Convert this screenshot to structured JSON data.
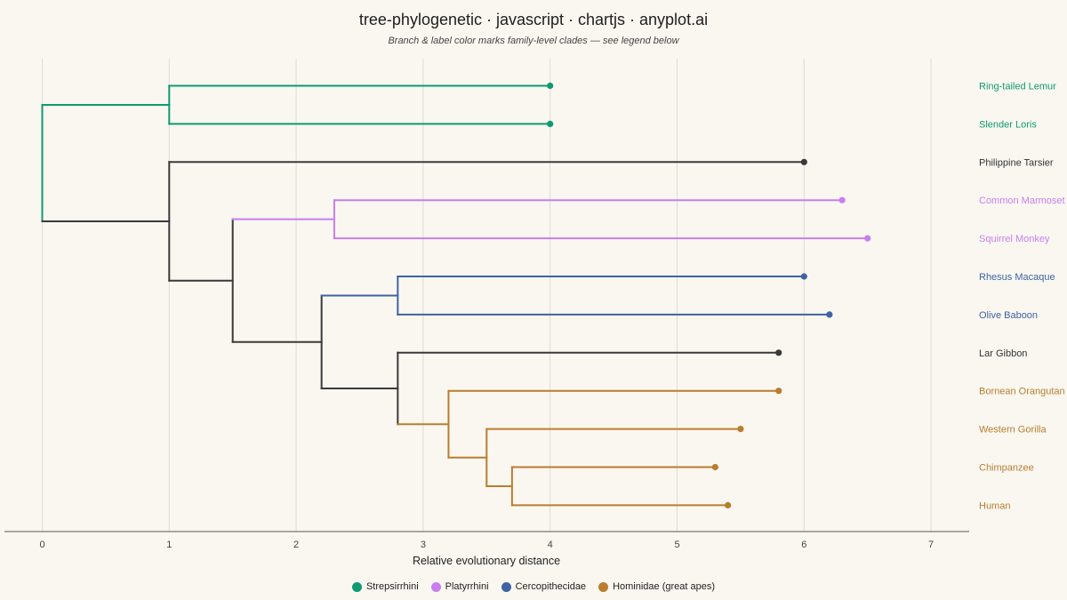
{
  "title": "tree-phylogenetic · javascript · chartjs · anyplot.ai",
  "subtitle": "Branch & label color marks family-level clades — see legend below",
  "colors": {
    "Strepsirrhini": "#0e9a72",
    "Platyrrhini": "#c77ff0",
    "Cercopithecidae": "#3f63a3",
    "Hominidae": "#b87e2f",
    "neutral": "#3a3a3a",
    "grid": "#dedbd4",
    "axis": "#555555"
  },
  "chart_data": {
    "type": "tree",
    "xlabel": "Relative evolutionary distance",
    "xlim": [
      0,
      7.3
    ],
    "xticks": [
      0,
      1,
      2,
      3,
      4,
      5,
      6,
      7
    ],
    "grid": true,
    "legend_position": "bottom",
    "tree": {
      "x": 0,
      "clade": "Strepsirrhini",
      "children": [
        {
          "x": 1,
          "clade": "Strepsirrhini",
          "children": [
            {
              "name": "Ring-tailed Lemur",
              "x": 4,
              "clade": "Strepsirrhini"
            },
            {
              "name": "Slender Loris",
              "x": 4,
              "clade": "Strepsirrhini"
            }
          ]
        },
        {
          "x": 1,
          "clade": "neutral",
          "children": [
            {
              "name": "Philippine Tarsier",
              "x": 6,
              "clade": "neutral"
            },
            {
              "x": 1.5,
              "clade": "neutral",
              "children": [
                {
                  "x": 2.3,
                  "clade": "Platyrrhini",
                  "children": [
                    {
                      "name": "Common Marmoset",
                      "x": 6.3,
                      "clade": "Platyrrhini"
                    },
                    {
                      "name": "Squirrel Monkey",
                      "x": 6.5,
                      "clade": "Platyrrhini"
                    }
                  ]
                },
                {
                  "x": 2.2,
                  "clade": "neutral",
                  "children": [
                    {
                      "x": 2.8,
                      "clade": "Cercopithecidae",
                      "children": [
                        {
                          "name": "Rhesus Macaque",
                          "x": 6,
                          "clade": "Cercopithecidae"
                        },
                        {
                          "name": "Olive Baboon",
                          "x": 6.2,
                          "clade": "Cercopithecidae"
                        }
                      ]
                    },
                    {
                      "x": 2.8,
                      "clade": "neutral",
                      "children": [
                        {
                          "name": "Lar Gibbon",
                          "x": 5.8,
                          "clade": "neutral"
                        },
                        {
                          "x": 3.2,
                          "clade": "Hominidae",
                          "children": [
                            {
                              "name": "Bornean Orangutan",
                              "x": 5.8,
                              "clade": "Hominidae"
                            },
                            {
                              "x": 3.5,
                              "clade": "Hominidae",
                              "children": [
                                {
                                  "name": "Western Gorilla",
                                  "x": 5.5,
                                  "clade": "Hominidae"
                                },
                                {
                                  "x": 3.7,
                                  "clade": "Hominidae",
                                  "children": [
                                    {
                                      "name": "Chimpanzee",
                                      "x": 5.3,
                                      "clade": "Hominidae"
                                    },
                                    {
                                      "name": "Human",
                                      "x": 5.4,
                                      "clade": "Hominidae"
                                    }
                                  ]
                                }
                              ]
                            }
                          ]
                        }
                      ]
                    }
                  ]
                }
              ]
            }
          ]
        }
      ]
    }
  },
  "legend": [
    {
      "label": "Strepsirrhini",
      "clade": "Strepsirrhini"
    },
    {
      "label": "Platyrrhini",
      "clade": "Platyrrhini"
    },
    {
      "label": "Cercopithecidae",
      "clade": "Cercopithecidae"
    },
    {
      "label": "Hominidae (great apes)",
      "clade": "Hominidae"
    }
  ]
}
